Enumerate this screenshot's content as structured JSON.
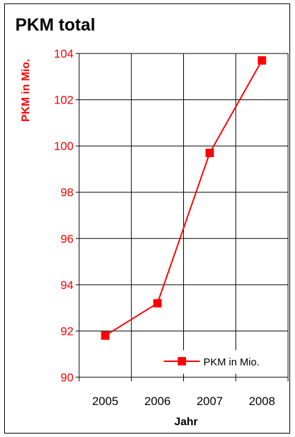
{
  "chart_data": {
    "type": "line",
    "title": "PKM total",
    "xlabel": "Jahr",
    "ylabel": "PKM in Mio.",
    "categories": [
      "2005",
      "2006",
      "2007",
      "2008"
    ],
    "series": [
      {
        "name": "PKM in Mio.",
        "values": [
          91.8,
          93.2,
          99.7,
          103.7
        ],
        "color": "#ff0000",
        "marker": "square"
      }
    ],
    "ylim": [
      90,
      104
    ],
    "yticks": [
      "90",
      "92",
      "94",
      "96",
      "98",
      "100",
      "102",
      "104"
    ],
    "grid": true,
    "legend_position": "bottom-right",
    "axis_label_color": "#ff0000"
  }
}
